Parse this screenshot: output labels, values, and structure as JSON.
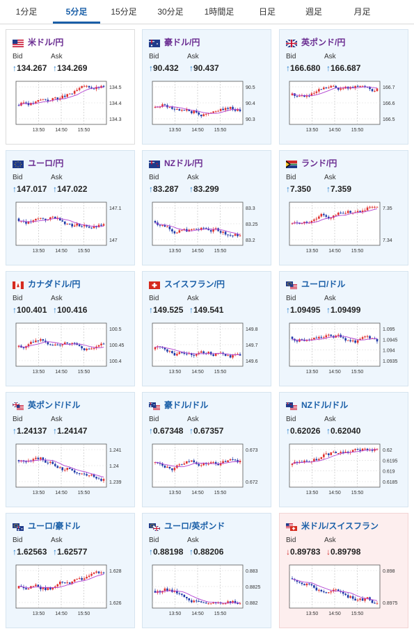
{
  "tabs": [
    {
      "label": "1分足"
    },
    {
      "label": "5分足"
    },
    {
      "label": "15分足"
    },
    {
      "label": "30分足"
    },
    {
      "label": "1時間足"
    },
    {
      "label": "日足"
    },
    {
      "label": "週足"
    },
    {
      "label": "月足"
    }
  ],
  "active_tab": "5分足",
  "labels": {
    "bid": "Bid",
    "ask": "Ask"
  },
  "colors": {
    "up_candle": "#e0312f",
    "down_candle": "#1f3aa8",
    "ma_line": "#b03fd0",
    "up_arrow": "#1a77c9",
    "down_arrow": "#d22a2a"
  },
  "cards": [
    {
      "pair": "米ドル/円",
      "flag": "us-flag-icon",
      "bid": "134.267",
      "ask": "134.269",
      "direction": "up",
      "xticks": [
        "13:50",
        "14:50",
        "15:50"
      ],
      "yticks": [
        "134.5",
        "134.4",
        "134.3"
      ]
    },
    {
      "pair": "豪ドル/円",
      "flag": "au-flag-icon",
      "bid": "90.432",
      "ask": "90.437",
      "direction": "up",
      "xticks": [
        "13:50",
        "14:50",
        "15:50"
      ],
      "yticks": [
        "90.5",
        "90.4",
        "90.3"
      ]
    },
    {
      "pair": "英ポンド/円",
      "flag": "gb-flag-icon",
      "bid": "166.680",
      "ask": "166.687",
      "direction": "up",
      "xticks": [
        "13:50",
        "14:50",
        "15:50"
      ],
      "yticks": [
        "166.7",
        "166.6",
        "166.5"
      ]
    },
    {
      "pair": "ユーロ/円",
      "flag": "eu-flag-icon",
      "bid": "147.017",
      "ask": "147.022",
      "direction": "up",
      "xticks": [
        "13:50",
        "14:50",
        "15:50"
      ],
      "yticks": [
        "147.1",
        "147"
      ]
    },
    {
      "pair": "NZドル/円",
      "flag": "nz-flag-icon",
      "bid": "83.287",
      "ask": "83.299",
      "direction": "up",
      "xticks": [
        "13:50",
        "14:50",
        "15:50"
      ],
      "yticks": [
        "83.3",
        "83.25",
        "83.2"
      ]
    },
    {
      "pair": "ランド/円",
      "flag": "za-flag-icon",
      "bid": "7.350",
      "ask": "7.359",
      "direction": "up",
      "xticks": [
        "13:50",
        "14:50",
        "15:50"
      ],
      "yticks": [
        "7.35",
        "7.34"
      ]
    },
    {
      "pair": "カナダドル/円",
      "flag": "ca-flag-icon",
      "bid": "100.401",
      "ask": "100.416",
      "direction": "up",
      "xticks": [
        "13:50",
        "14:50",
        "15:50"
      ],
      "yticks": [
        "100.5",
        "100.45",
        "100.4"
      ]
    },
    {
      "pair": "スイスフラン/円",
      "flag": "ch-flag-icon",
      "bid": "149.525",
      "ask": "149.541",
      "direction": "up",
      "xticks": [
        "13:50",
        "14:50",
        "15:50"
      ],
      "yticks": [
        "149.8",
        "149.7",
        "149.6"
      ]
    },
    {
      "pair": "ユーロ/ドル",
      "flag": "eu-us-flag-icon",
      "bid": "1.09495",
      "ask": "1.09499",
      "direction": "up",
      "xticks": [
        "13:50",
        "14:50",
        "15:50"
      ],
      "yticks": [
        "1.095",
        "1.0945",
        "1.094",
        "1.0935"
      ]
    },
    {
      "pair": "英ポンド/ドル",
      "flag": "gb-us-flag-icon",
      "bid": "1.24137",
      "ask": "1.24147",
      "direction": "up",
      "xticks": [
        "13:50",
        "14:50",
        "15:50"
      ],
      "yticks": [
        "1.241",
        "1.24",
        "1.239"
      ]
    },
    {
      "pair": "豪ドル/ドル",
      "flag": "au-us-flag-icon",
      "bid": "0.67348",
      "ask": "0.67357",
      "direction": "up",
      "xticks": [
        "13:50",
        "14:50",
        "15:50"
      ],
      "yticks": [
        "0.673",
        "0.672"
      ]
    },
    {
      "pair": "NZドル/ドル",
      "flag": "nz-us-flag-icon",
      "bid": "0.62026",
      "ask": "0.62040",
      "direction": "up",
      "xticks": [
        "13:50",
        "14:50",
        "15:50"
      ],
      "yticks": [
        "0.62",
        "0.6195",
        "0.619",
        "0.6185"
      ]
    },
    {
      "pair": "ユーロ/豪ドル",
      "flag": "eu-au-flag-icon",
      "bid": "1.62563",
      "ask": "1.62577",
      "direction": "up",
      "xticks": [
        "13:50",
        "14:50",
        "15:50"
      ],
      "yticks": [
        "1.628",
        "1.626"
      ]
    },
    {
      "pair": "ユーロ/英ポンド",
      "flag": "eu-gb-flag-icon",
      "bid": "0.88198",
      "ask": "0.88206",
      "direction": "up",
      "xticks": [
        "13:50",
        "14:50",
        "15:50"
      ],
      "yticks": [
        "0.883",
        "0.8825",
        "0.882"
      ]
    },
    {
      "pair": "米ドル/スイスフラン",
      "flag": "us-ch-flag-icon",
      "bid": "0.89783",
      "ask": "0.89798",
      "direction": "down",
      "xticks": [
        "13:50",
        "14:50",
        "15:50"
      ],
      "yticks": [
        "0.898",
        "0.8975"
      ]
    }
  ]
}
